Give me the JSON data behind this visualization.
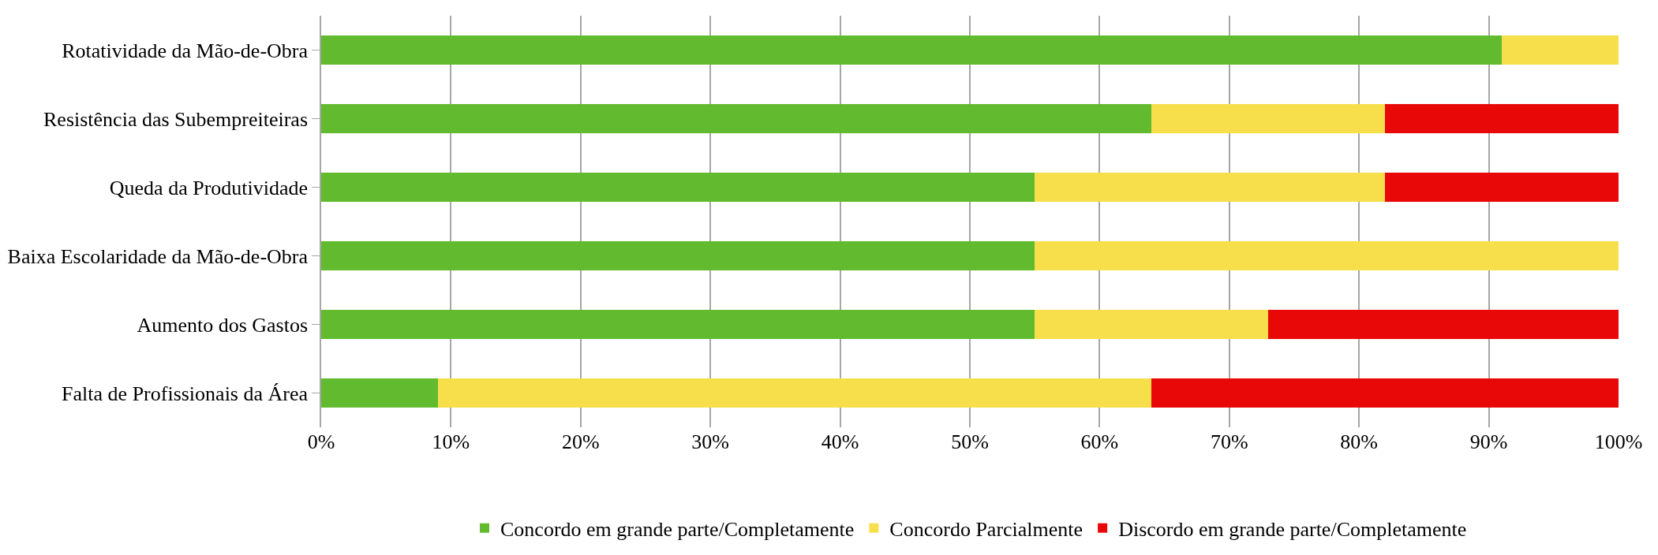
{
  "chart_data": {
    "type": "bar",
    "orientation": "horizontal",
    "stacked": true,
    "categories": [
      "Rotatividade da Mão-de-Obra",
      "Resistência das Subempreiteiras",
      "Queda da Produtividade",
      "Baixa Escolaridade da Mão-de-Obra",
      "Aumento dos Gastos",
      "Falta de Profissionais da Área"
    ],
    "series": [
      {
        "name": "Concordo em grande parte/Completamente",
        "color": "#62bb2f",
        "values": [
          91,
          64,
          55,
          55,
          55,
          9
        ]
      },
      {
        "name": "Concordo Parcialmente",
        "color": "#f7df4b",
        "values": [
          9,
          18,
          27,
          45,
          18,
          55
        ]
      },
      {
        "name": "Discordo em grande parte/Completamente",
        "color": "#e90808",
        "values": [
          0,
          18,
          18,
          0,
          27,
          36
        ]
      }
    ],
    "xlim": [
      0,
      100
    ],
    "xticks": [
      {
        "value": 0,
        "label": "0%"
      },
      {
        "value": 10,
        "label": "10%"
      },
      {
        "value": 20,
        "label": "20%"
      },
      {
        "value": 30,
        "label": "30%"
      },
      {
        "value": 40,
        "label": "40%"
      },
      {
        "value": 50,
        "label": "50%"
      },
      {
        "value": 60,
        "label": "60%"
      },
      {
        "value": 70,
        "label": "70%"
      },
      {
        "value": 80,
        "label": "80%"
      },
      {
        "value": 90,
        "label": "90%"
      },
      {
        "value": 100,
        "label": "100%"
      }
    ],
    "grid": "x",
    "legend": "bottom"
  }
}
